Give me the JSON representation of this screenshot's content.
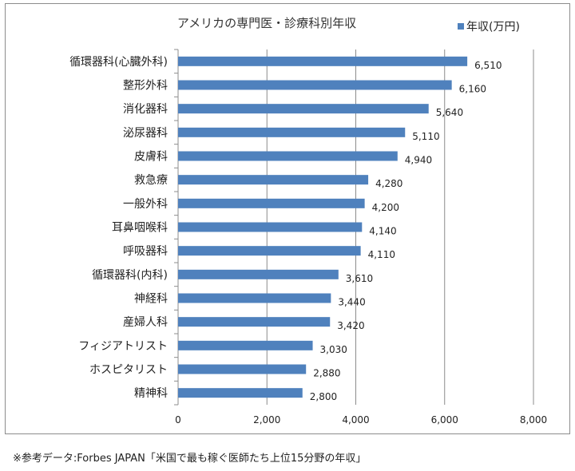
{
  "chart_data": {
    "type": "bar",
    "orientation": "horizontal",
    "title": "アメリカの専門医・診療科別年収",
    "legend": {
      "label": "年収(万円)",
      "placement": "top-right",
      "color": "#4f81bd"
    },
    "categories": [
      "循環器科(心臓外科)",
      "整形外科",
      "消化器科",
      "泌尿器科",
      "皮膚科",
      "救急療",
      "一般外科",
      "耳鼻咽喉科",
      "呼吸器科",
      "循環器科(内科)",
      "神経科",
      "産婦人科",
      "フィジアトリスト",
      "ホスピタリスト",
      "精神科"
    ],
    "series": [
      {
        "name": "年収(万円)",
        "values": [
          6510,
          6160,
          5640,
          5110,
          4940,
          4280,
          4200,
          4140,
          4110,
          3610,
          3440,
          3420,
          3030,
          2880,
          2800
        ],
        "labels": [
          "6,510",
          "6,160",
          "5,640",
          "5,110",
          "4,940",
          "4,280",
          "4,200",
          "4,140",
          "4,110",
          "3,610",
          "3,440",
          "3,420",
          "3,030",
          "2,880",
          "2,800"
        ]
      }
    ],
    "xlim": [
      0,
      8000
    ],
    "xticks": [
      0,
      2000,
      4000,
      6000,
      8000
    ],
    "xtick_labels": [
      "0",
      "2,000",
      "4,000",
      "6,000",
      "8,000"
    ],
    "grid": "vertical",
    "bar_color": "#4f81bd"
  },
  "footnote": "※参考データ:Forbes JAPAN「米国で最も稼ぐ医師たち上位15分野の年収」"
}
